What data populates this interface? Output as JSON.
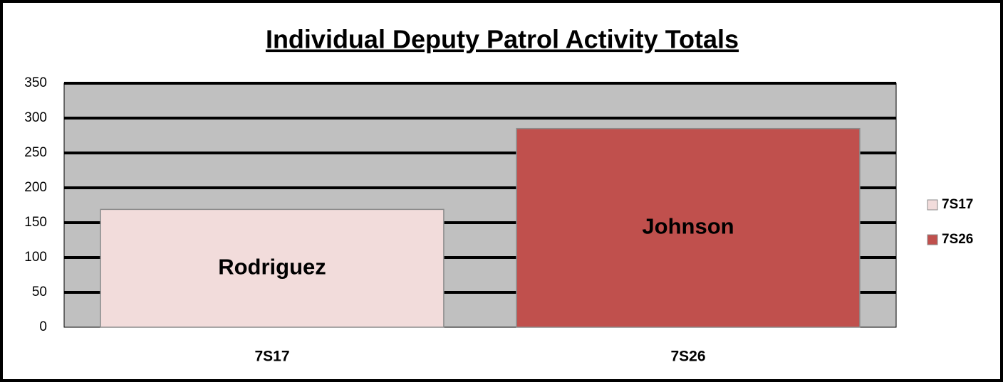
{
  "chart_data": {
    "type": "bar",
    "title": "Individual Deputy Patrol Activity Totals",
    "categories": [
      "7S17",
      "7S26"
    ],
    "series": [
      {
        "name": "7S17",
        "color": "#f2dcdb",
        "values": [
          169,
          null
        ],
        "label": "Rodriguez"
      },
      {
        "name": "7S26",
        "color": "#c0504d",
        "values": [
          null,
          285
        ],
        "label": "Johnson"
      }
    ],
    "ylim": [
      0,
      350
    ],
    "yticks": [
      0,
      50,
      100,
      150,
      200,
      250,
      300,
      350
    ],
    "grid": true,
    "plot_background": "#c0c0c0",
    "legend": "right"
  }
}
